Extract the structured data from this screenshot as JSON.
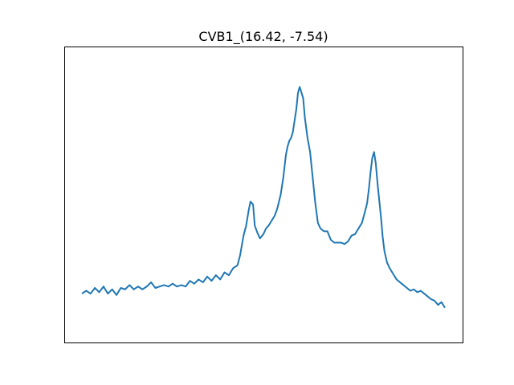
{
  "chart_data": {
    "type": "line",
    "title": "CVB1_(16.42, -7.54)",
    "xlabel": "",
    "ylabel": "",
    "x_ticks_visible": false,
    "y_ticks_visible": false,
    "grid": false,
    "legend": "none",
    "xlim": [
      0,
      420
    ],
    "ylim": [
      0.0,
      1.0
    ],
    "series": [
      {
        "color": "#1f77b4",
        "x": [
          0,
          5,
          10,
          15,
          20,
          25,
          30,
          35,
          40,
          45,
          50,
          55,
          60,
          65,
          70,
          75,
          80,
          85,
          90,
          95,
          100,
          105,
          110,
          115,
          120,
          125,
          130,
          135,
          140,
          145,
          150,
          155,
          160,
          165,
          170,
          175,
          180,
          183,
          185,
          187,
          190,
          193,
          195,
          198,
          200,
          203,
          206,
          210,
          213,
          216,
          220,
          223,
          226,
          230,
          233,
          236,
          238,
          240,
          242,
          244,
          246,
          248,
          250,
          252,
          254,
          256,
          258,
          261,
          264,
          267,
          270,
          273,
          276,
          280,
          284,
          288,
          292,
          296,
          300,
          304,
          308,
          312,
          316,
          320,
          324,
          328,
          330,
          332,
          334,
          336,
          338,
          340,
          342,
          344,
          346,
          348,
          350,
          353,
          356,
          360,
          364,
          368,
          372,
          376,
          380,
          384,
          388,
          392,
          396,
          400,
          404,
          408,
          412,
          416,
          420
        ],
        "y": [
          0.15,
          0.16,
          0.15,
          0.17,
          0.155,
          0.175,
          0.15,
          0.165,
          0.145,
          0.17,
          0.165,
          0.18,
          0.165,
          0.175,
          0.165,
          0.175,
          0.19,
          0.17,
          0.175,
          0.18,
          0.175,
          0.185,
          0.175,
          0.18,
          0.175,
          0.195,
          0.185,
          0.2,
          0.19,
          0.21,
          0.195,
          0.215,
          0.2,
          0.225,
          0.215,
          0.24,
          0.25,
          0.285,
          0.32,
          0.355,
          0.39,
          0.445,
          0.475,
          0.465,
          0.39,
          0.365,
          0.345,
          0.36,
          0.38,
          0.39,
          0.41,
          0.425,
          0.45,
          0.5,
          0.56,
          0.64,
          0.67,
          0.69,
          0.7,
          0.72,
          0.76,
          0.8,
          0.86,
          0.88,
          0.86,
          0.84,
          0.77,
          0.7,
          0.65,
          0.56,
          0.47,
          0.4,
          0.38,
          0.37,
          0.37,
          0.34,
          0.33,
          0.33,
          0.33,
          0.325,
          0.335,
          0.355,
          0.36,
          0.38,
          0.4,
          0.445,
          0.47,
          0.52,
          0.58,
          0.63,
          0.65,
          0.61,
          0.54,
          0.48,
          0.42,
          0.35,
          0.3,
          0.26,
          0.24,
          0.22,
          0.2,
          0.19,
          0.18,
          0.17,
          0.16,
          0.165,
          0.155,
          0.16,
          0.15,
          0.14,
          0.13,
          0.125,
          0.11,
          0.12,
          0.1
        ]
      }
    ]
  }
}
